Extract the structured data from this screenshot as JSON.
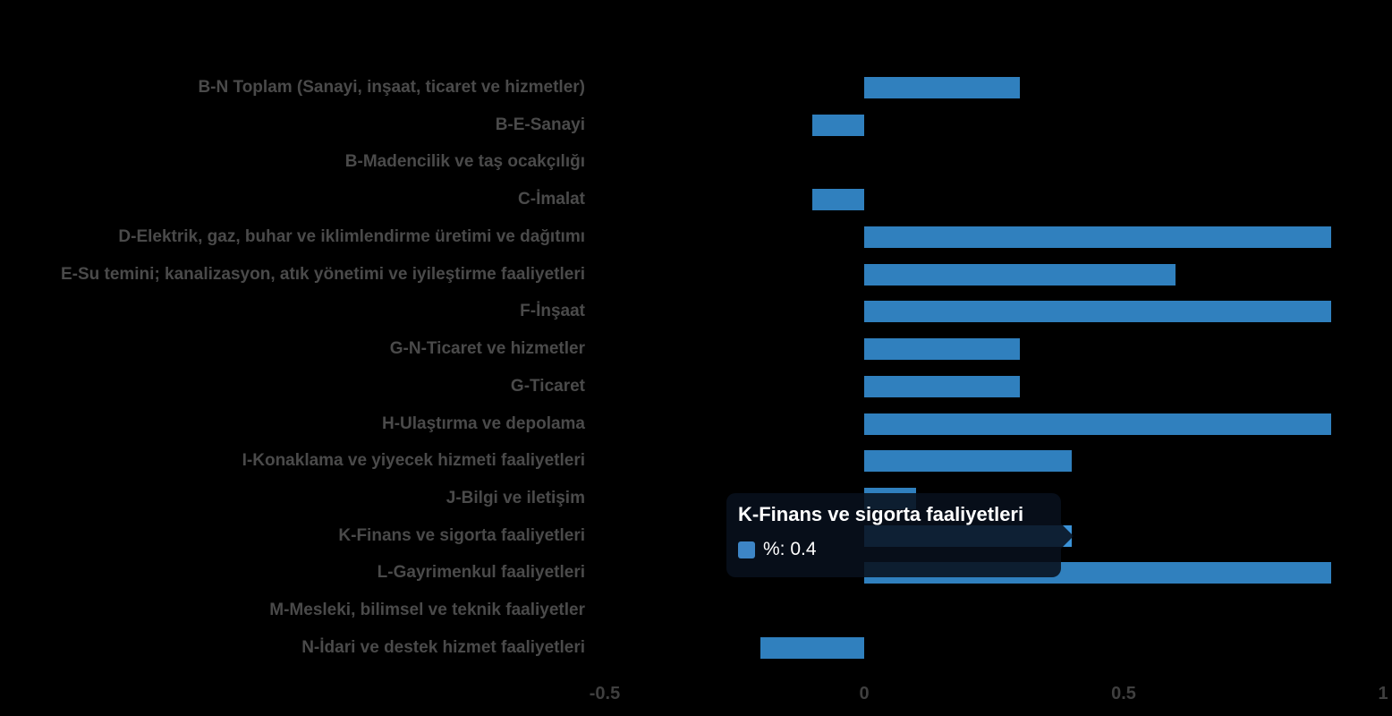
{
  "chart_data": {
    "type": "bar",
    "orientation": "horizontal",
    "title": "",
    "xlabel": "",
    "ylabel": "",
    "categories": [
      "B-N Toplam (Sanayi, inşaat, ticaret ve hizmetler)",
      "B-E-Sanayi",
      "B-Madencilik ve taş ocakçılığı",
      "C-İmalat",
      "D-Elektrik, gaz, buhar ve iklimlendirme üretimi ve dağıtımı",
      "E-Su temini; kanalizasyon, atık yönetimi ve iyileştirme faaliyetleri",
      "F-İnşaat",
      "G-N-Ticaret ve hizmetler",
      "G-Ticaret",
      "H-Ulaştırma ve depolama",
      "I-Konaklama ve yiyecek hizmeti faaliyetleri",
      "J-Bilgi ve iletişim",
      "K-Finans ve sigorta faaliyetleri",
      "L-Gayrimenkul faaliyetleri",
      "M-Mesleki, bilimsel ve teknik faaliyetler",
      "N-İdari ve destek hizmet faaliyetleri"
    ],
    "series": [
      {
        "name": "%",
        "values": [
          0.3,
          -0.1,
          0,
          -0.1,
          0.9,
          0.6,
          0.9,
          0.3,
          0.3,
          0.9,
          0.4,
          0.1,
          0.4,
          0.9,
          0,
          -0.2
        ]
      }
    ],
    "xlim": [
      -0.5,
      1
    ],
    "x_ticks": [
      "-0.5",
      "0",
      "0.5",
      "1"
    ],
    "x_tick_values": [
      -0.5,
      0,
      0.5,
      1
    ],
    "grid": false,
    "legend_position": "none",
    "background_color": "#000000",
    "bar_color": "#3080be",
    "hover_bar_color": "#3b93d8",
    "label_color": "#4a4a4a",
    "tick_color": "#3f3f3f"
  },
  "tooltip": {
    "title": "K-Finans ve sigorta faaliyetleri",
    "series_name": "%",
    "value": "0.4",
    "label": "%: 0.4",
    "swatch_color": "#3d85c6",
    "category_index": 12
  }
}
